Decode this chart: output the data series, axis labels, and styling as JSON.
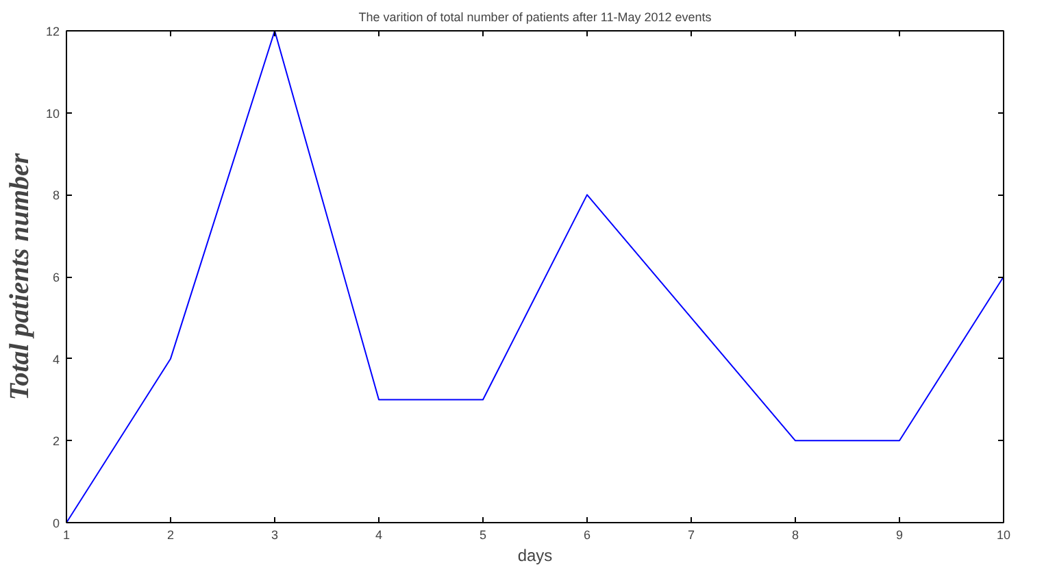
{
  "chart_data": {
    "type": "line",
    "title": "The varition of total number of patients after 11-May 2012 events",
    "xlabel": "days",
    "ylabel": "Total patients number",
    "x": [
      1,
      2,
      3,
      4,
      5,
      6,
      7,
      8,
      9,
      10
    ],
    "series": [
      {
        "color": "#0000ff",
        "values": [
          0,
          4,
          12,
          3,
          3,
          8,
          5,
          2,
          2,
          6
        ]
      }
    ],
    "xlim": [
      1,
      10
    ],
    "xticks": [
      1,
      2,
      3,
      4,
      5,
      6,
      7,
      8,
      9,
      10
    ],
    "ylim": [
      0,
      12
    ],
    "yticks": [
      0,
      2,
      4,
      6,
      8,
      10,
      12
    ],
    "grid": false,
    "line_style": "solid"
  }
}
